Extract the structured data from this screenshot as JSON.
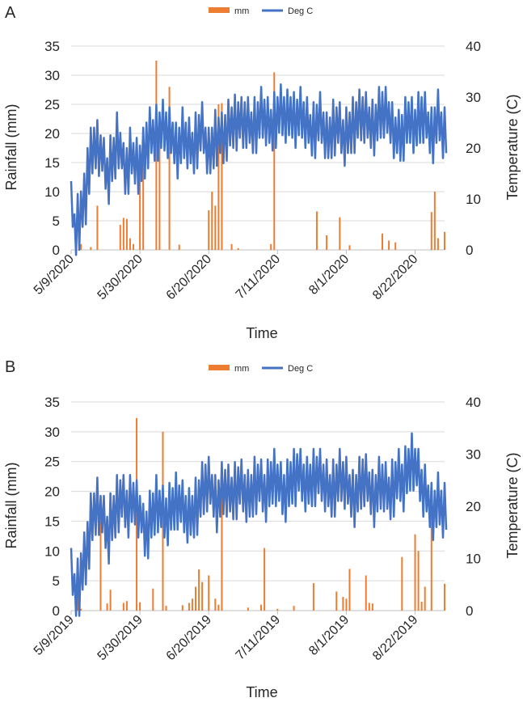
{
  "colors": {
    "rain": "#ED7D31",
    "temp": "#4472C4",
    "grid": "#D9D9D9",
    "text": "#262626"
  },
  "chart_data": [
    {
      "type": "bar+line",
      "panel_label": "A",
      "xlabel": "Time",
      "ylabel_left": "Rainfall (mm)",
      "ylabel_right": "Temperature (C)",
      "ylim_left": [
        0,
        35
      ],
      "ylim_right": [
        0,
        40
      ],
      "yticks_left": [
        "0",
        "5",
        "10",
        "15",
        "20",
        "25",
        "30",
        "35"
      ],
      "yticks_right": [
        "0",
        "10",
        "20",
        "30",
        "40"
      ],
      "xticks": [
        "5/9/2020",
        "5/30/2020",
        "6/20/2020",
        "7/11/2020",
        "8/1/2020",
        "8/22/2020"
      ],
      "legend": [
        "mm",
        "Deg C"
      ],
      "legend_position": "top-center",
      "grid": true,
      "x_start": "5/9/2020",
      "days": 115,
      "rain_mm": [
        [
          3,
          1
        ],
        [
          6,
          0.5
        ],
        [
          8,
          7.6
        ],
        [
          15,
          4.3
        ],
        [
          16,
          5.5
        ],
        [
          17,
          5.3
        ],
        [
          18,
          2
        ],
        [
          19,
          1
        ],
        [
          21,
          13.6
        ],
        [
          22,
          15.8
        ],
        [
          26,
          32.5
        ],
        [
          27,
          19
        ],
        [
          30,
          28
        ],
        [
          33,
          0.9
        ],
        [
          42,
          6.8
        ],
        [
          43,
          10
        ],
        [
          44,
          7.6
        ],
        [
          45,
          25
        ],
        [
          46,
          25.2
        ],
        [
          49,
          1
        ],
        [
          51,
          0.3
        ],
        [
          61,
          1
        ],
        [
          62,
          30.5
        ],
        [
          75,
          6.6
        ],
        [
          78,
          2.5
        ],
        [
          82,
          5.6
        ],
        [
          85,
          0.8
        ],
        [
          95,
          2.8
        ],
        [
          97,
          1.6
        ],
        [
          99,
          1.3
        ],
        [
          110,
          6.5
        ],
        [
          111,
          10
        ],
        [
          112,
          2
        ],
        [
          114,
          3.1
        ]
      ],
      "temp_c": [
        [
          0,
          13.5
        ],
        [
          1,
          9
        ],
        [
          2,
          11
        ],
        [
          3,
          13.5
        ],
        [
          4,
          15
        ],
        [
          5,
          22
        ],
        [
          6,
          24
        ],
        [
          7,
          26
        ],
        [
          8,
          25.5
        ],
        [
          9,
          24.5
        ],
        [
          10,
          22
        ],
        [
          11,
          20
        ],
        [
          12,
          22.5
        ],
        [
          13,
          24
        ],
        [
          14,
          27
        ],
        [
          15,
          25
        ],
        [
          16,
          21
        ],
        [
          17,
          22
        ],
        [
          18,
          24
        ],
        [
          19,
          23
        ],
        [
          20,
          22
        ],
        [
          21,
          22.5
        ],
        [
          22,
          24
        ],
        [
          23,
          27
        ],
        [
          24,
          28
        ],
        [
          25,
          27.5
        ],
        [
          26,
          28.5
        ],
        [
          27,
          29
        ],
        [
          28,
          29.5
        ],
        [
          29,
          29
        ],
        [
          30,
          28
        ],
        [
          31,
          27
        ],
        [
          32,
          25
        ],
        [
          33,
          26
        ],
        [
          34,
          28
        ],
        [
          35,
          27
        ],
        [
          36,
          26
        ],
        [
          37,
          25
        ],
        [
          38,
          27
        ],
        [
          39,
          28.5
        ],
        [
          40,
          29
        ],
        [
          41,
          26
        ],
        [
          42,
          24
        ],
        [
          43,
          26
        ],
        [
          44,
          27.5
        ],
        [
          45,
          28
        ],
        [
          46,
          27
        ],
        [
          47,
          28.5
        ],
        [
          48,
          29.5
        ],
        [
          49,
          30
        ],
        [
          50,
          30.5
        ],
        [
          51,
          31
        ],
        [
          52,
          30
        ],
        [
          53,
          31
        ],
        [
          54,
          30
        ],
        [
          55,
          29
        ],
        [
          56,
          30
        ],
        [
          57,
          31
        ],
        [
          58,
          32
        ],
        [
          59,
          31.5
        ],
        [
          60,
          30
        ],
        [
          61,
          29.5
        ],
        [
          62,
          31
        ],
        [
          63,
          32
        ],
        [
          64,
          32.5
        ],
        [
          65,
          32
        ],
        [
          66,
          31.5
        ],
        [
          67,
          32
        ],
        [
          68,
          31
        ],
        [
          69,
          31.5
        ],
        [
          70,
          32
        ],
        [
          71,
          31
        ],
        [
          72,
          30
        ],
        [
          73,
          28.5
        ],
        [
          74,
          29
        ],
        [
          75,
          30.5
        ],
        [
          76,
          31
        ],
        [
          77,
          29
        ],
        [
          78,
          27
        ],
        [
          79,
          28
        ],
        [
          80,
          29.5
        ],
        [
          81,
          30
        ],
        [
          82,
          29
        ],
        [
          83,
          27.5
        ],
        [
          84,
          28
        ],
        [
          85,
          29
        ],
        [
          86,
          30
        ],
        [
          87,
          31
        ],
        [
          88,
          31.5
        ],
        [
          89,
          32
        ],
        [
          90,
          31
        ],
        [
          91,
          30
        ],
        [
          92,
          29.5
        ],
        [
          93,
          30.5
        ],
        [
          94,
          32
        ],
        [
          95,
          33
        ],
        [
          96,
          32
        ],
        [
          97,
          31
        ],
        [
          98,
          29
        ],
        [
          99,
          28
        ],
        [
          100,
          27.5
        ],
        [
          101,
          28.5
        ],
        [
          102,
          30
        ],
        [
          103,
          31
        ],
        [
          104,
          30
        ],
        [
          105,
          29.5
        ],
        [
          106,
          31
        ],
        [
          107,
          32
        ],
        [
          108,
          31
        ],
        [
          109,
          29
        ],
        [
          110,
          28
        ],
        [
          111,
          30
        ],
        [
          112,
          31.5
        ],
        [
          113,
          29
        ],
        [
          114,
          28
        ]
      ]
    },
    {
      "type": "bar+line",
      "panel_label": "B",
      "xlabel": "Time",
      "ylabel_left": "Rainfall (mm)",
      "ylabel_right": "Temperature (C)",
      "ylim_left": [
        0,
        35
      ],
      "ylim_right": [
        0,
        40
      ],
      "yticks_left": [
        "0",
        "5",
        "10",
        "15",
        "20",
        "25",
        "30",
        "35"
      ],
      "yticks_right": [
        "0",
        "10",
        "20",
        "30",
        "40"
      ],
      "xticks": [
        "5/9/2019",
        "5/30/2019",
        "6/20/2019",
        "7/11/2019",
        "8/1/2019",
        "8/22/2019"
      ],
      "legend": [
        "mm",
        "Deg C"
      ],
      "legend_position": "top-center",
      "grid": true,
      "x_start": "5/9/2019",
      "days": 115,
      "rain_mm": [
        [
          2,
          6.5
        ],
        [
          3,
          0.3
        ],
        [
          9,
          15
        ],
        [
          11,
          1.2
        ],
        [
          12,
          3.5
        ],
        [
          16,
          1.3
        ],
        [
          17,
          1.6
        ],
        [
          20,
          32.3
        ],
        [
          21,
          1.4
        ],
        [
          25,
          3.7
        ],
        [
          28,
          30
        ],
        [
          29,
          0.8
        ],
        [
          34,
          0.9
        ],
        [
          36,
          1.3
        ],
        [
          37,
          2
        ],
        [
          38,
          4
        ],
        [
          39,
          6.9
        ],
        [
          40,
          4.8
        ],
        [
          42,
          5.9
        ],
        [
          44,
          2
        ],
        [
          45,
          1
        ],
        [
          46,
          23.5
        ],
        [
          54,
          0.5
        ],
        [
          58,
          1
        ],
        [
          59,
          10.5
        ],
        [
          63,
          0.3
        ],
        [
          68,
          0.8
        ],
        [
          74,
          4.6
        ],
        [
          81,
          3.2
        ],
        [
          83,
          2.3
        ],
        [
          84,
          2
        ],
        [
          85,
          7
        ],
        [
          90,
          5.9
        ],
        [
          91,
          1.3
        ],
        [
          92,
          1.2
        ],
        [
          101,
          9
        ],
        [
          105,
          12.8
        ],
        [
          106,
          10
        ],
        [
          107,
          1.5
        ],
        [
          108,
          4
        ],
        [
          110,
          17
        ],
        [
          114,
          4.5
        ]
      ],
      "temp_c": [
        [
          0,
          12
        ],
        [
          1,
          9
        ],
        [
          2,
          10
        ],
        [
          3,
          13
        ],
        [
          4,
          15
        ],
        [
          5,
          19
        ],
        [
          6,
          22.5
        ],
        [
          7,
          24.5
        ],
        [
          8,
          25.5
        ],
        [
          9,
          24
        ],
        [
          10,
          22
        ],
        [
          11,
          20
        ],
        [
          12,
          22.5
        ],
        [
          13,
          24
        ],
        [
          14,
          26
        ],
        [
          15,
          27
        ],
        [
          16,
          26
        ],
        [
          17,
          25
        ],
        [
          18,
          26
        ],
        [
          19,
          26.5
        ],
        [
          20,
          25
        ],
        [
          21,
          24
        ],
        [
          22,
          20.5
        ],
        [
          23,
          21
        ],
        [
          24,
          23
        ],
        [
          25,
          24.5
        ],
        [
          26,
          26
        ],
        [
          27,
          25
        ],
        [
          28,
          24
        ],
        [
          29,
          23.5
        ],
        [
          30,
          24.5
        ],
        [
          31,
          25.5
        ],
        [
          32,
          26.5
        ],
        [
          33,
          26
        ],
        [
          34,
          25
        ],
        [
          35,
          24
        ],
        [
          36,
          23.5
        ],
        [
          37,
          24
        ],
        [
          38,
          25.5
        ],
        [
          39,
          27
        ],
        [
          40,
          28.5
        ],
        [
          41,
          30
        ],
        [
          42,
          29.5
        ],
        [
          43,
          28
        ],
        [
          44,
          26
        ],
        [
          45,
          27
        ],
        [
          46,
          28.5
        ],
        [
          47,
          29
        ],
        [
          48,
          28
        ],
        [
          49,
          27.5
        ],
        [
          50,
          28.5
        ],
        [
          51,
          29.5
        ],
        [
          52,
          29
        ],
        [
          53,
          28
        ],
        [
          54,
          27
        ],
        [
          55,
          28
        ],
        [
          56,
          29.5
        ],
        [
          57,
          30
        ],
        [
          58,
          29
        ],
        [
          59,
          28
        ],
        [
          60,
          29
        ],
        [
          61,
          30.5
        ],
        [
          62,
          31
        ],
        [
          63,
          30
        ],
        [
          64,
          28.5
        ],
        [
          65,
          28
        ],
        [
          66,
          29
        ],
        [
          67,
          30.5
        ],
        [
          68,
          31
        ],
        [
          69,
          32
        ],
        [
          70,
          31
        ],
        [
          71,
          30
        ],
        [
          72,
          29.5
        ],
        [
          73,
          30
        ],
        [
          74,
          31
        ],
        [
          75,
          31.5
        ],
        [
          76,
          31
        ],
        [
          77,
          30
        ],
        [
          78,
          29
        ],
        [
          79,
          28
        ],
        [
          80,
          29
        ],
        [
          81,
          30
        ],
        [
          82,
          31
        ],
        [
          83,
          30.5
        ],
        [
          84,
          29.5
        ],
        [
          85,
          28
        ],
        [
          86,
          27
        ],
        [
          87,
          28
        ],
        [
          88,
          29.5
        ],
        [
          89,
          31
        ],
        [
          90,
          30
        ],
        [
          91,
          28.5
        ],
        [
          92,
          27
        ],
        [
          93,
          28
        ],
        [
          94,
          29.5
        ],
        [
          95,
          30
        ],
        [
          96,
          28.5
        ],
        [
          97,
          27.5
        ],
        [
          98,
          29
        ],
        [
          99,
          30.5
        ],
        [
          100,
          31
        ],
        [
          101,
          30
        ],
        [
          102,
          31.5
        ],
        [
          103,
          33
        ],
        [
          104,
          34
        ],
        [
          105,
          33
        ],
        [
          106,
          31
        ],
        [
          107,
          29
        ],
        [
          108,
          28
        ],
        [
          109,
          26
        ],
        [
          110,
          24.5
        ],
        [
          111,
          25
        ],
        [
          112,
          26.5
        ],
        [
          113,
          25
        ],
        [
          114,
          24.5
        ]
      ]
    }
  ]
}
